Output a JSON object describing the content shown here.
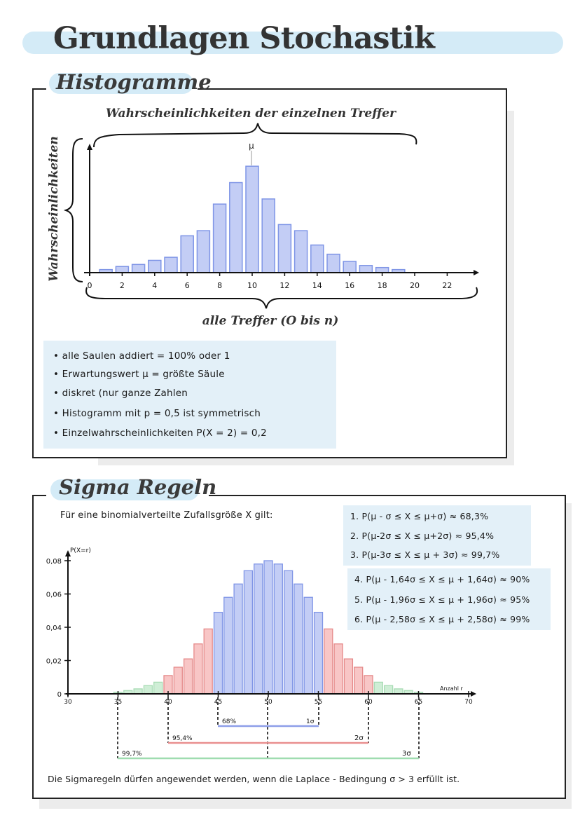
{
  "title": "Grundlagen Stochastik",
  "histogramme": {
    "heading": "Histogramme",
    "top_label": "Wahrscheinlichkeiten der einzelnen Treffer",
    "y_label": "Wahrscheinlichkeiten",
    "x_label": "alle Treffer (O bis n)",
    "mu_label": "μ",
    "x_ticks": [
      "0",
      "2",
      "4",
      "6",
      "8",
      "10",
      "12",
      "14",
      "16",
      "18",
      "20",
      "22"
    ],
    "notes": [
      "• alle Saulen addiert = 100% oder 1",
      "• Erwartungswert μ = größte Säule",
      "• diskret (nur ganze Zahlen",
      "• Histogramm mit p = 0,5 ist symmetrisch",
      "• Einzelwahrscheinlichkeiten P(X = 2) = 0,2"
    ]
  },
  "sigma": {
    "heading": "Sigma Regeln",
    "intro": "Für eine binomialverteilte Zufallsgröße X gilt:",
    "rules_a": [
      "1. P(μ - σ ≤ X ≤ μ+σ) ≈ 68,3%",
      "2. P(μ-2σ ≤ X ≤ μ+2σ) ≈ 95,4%",
      "3. P(μ-3σ ≤ X ≤ μ + 3σ) ≈ 99,7%"
    ],
    "rules_b": [
      "4. P(μ - 1,64σ ≤ X ≤ μ + 1,64σ) ≈ 90%",
      "5. P(μ - 1,96σ ≤ X ≤ μ + 1,96σ) ≈ 95%",
      "6. P(μ - 2,58σ ≤ X ≤ μ + 2,58σ) ≈ 99%"
    ],
    "y_axis_label": "P(X=r)",
    "x_axis_label": "Anzahl r",
    "y_ticks": [
      "0",
      "0,02",
      "0,04",
      "0,06",
      "0,08"
    ],
    "x_ticks": [
      "30",
      "35",
      "40",
      "45",
      "50",
      "55",
      "60",
      "65",
      "70"
    ],
    "bands": [
      {
        "pct": "68%",
        "sigma": "1σ"
      },
      {
        "pct": "95,4%",
        "sigma": "2σ"
      },
      {
        "pct": "99,7%",
        "sigma": "3σ"
      }
    ],
    "footer": "Die Sigmaregeln dürfen angewendet werden, wenn die Laplace - Bedingung σ > 3 erfüllt ist."
  },
  "colors": {
    "title_band": "#d4ebf7",
    "blue_bar": "#c3cdf5",
    "blue_edge": "#7f95e6",
    "red_bar": "#f8c6c6",
    "red_edge": "#e58a8a",
    "green_bar": "#cfeed6",
    "green_edge": "#a8dcb5"
  },
  "chart_data": [
    {
      "type": "bar",
      "x": [
        1,
        2,
        3,
        4,
        5,
        6,
        7,
        8,
        9,
        10,
        11,
        12,
        13,
        14,
        15,
        16,
        17,
        18,
        19
      ],
      "values": [
        0.003,
        0.006,
        0.008,
        0.012,
        0.015,
        0.036,
        0.041,
        0.067,
        0.088,
        0.104,
        0.072,
        0.047,
        0.041,
        0.027,
        0.018,
        0.011,
        0.007,
        0.005,
        0.003
      ],
      "xlim": [
        0,
        23
      ],
      "ylim": [
        0,
        0.12
      ]
    },
    {
      "type": "bar",
      "x": [
        35,
        36,
        37,
        38,
        39,
        40,
        41,
        42,
        43,
        44,
        45,
        46,
        47,
        48,
        49,
        50,
        51,
        52,
        53,
        54,
        55,
        56,
        57,
        58,
        59,
        60,
        61,
        62,
        63,
        64,
        65
      ],
      "values": [
        0.001,
        0.002,
        0.003,
        0.005,
        0.007,
        0.011,
        0.016,
        0.021,
        0.03,
        0.039,
        0.049,
        0.058,
        0.066,
        0.074,
        0.078,
        0.08,
        0.078,
        0.074,
        0.066,
        0.058,
        0.049,
        0.039,
        0.03,
        0.021,
        0.016,
        0.011,
        0.007,
        0.005,
        0.003,
        0.002,
        0.001
      ],
      "zones": {
        "one_sigma": [
          45,
          55
        ],
        "three_sigma": [
          35,
          65
        ]
      },
      "xlim": [
        30,
        70
      ],
      "ylim": [
        0,
        0.08
      ],
      "xlabel": "Anzahl r",
      "ylabel": "P(X=r)"
    }
  ]
}
